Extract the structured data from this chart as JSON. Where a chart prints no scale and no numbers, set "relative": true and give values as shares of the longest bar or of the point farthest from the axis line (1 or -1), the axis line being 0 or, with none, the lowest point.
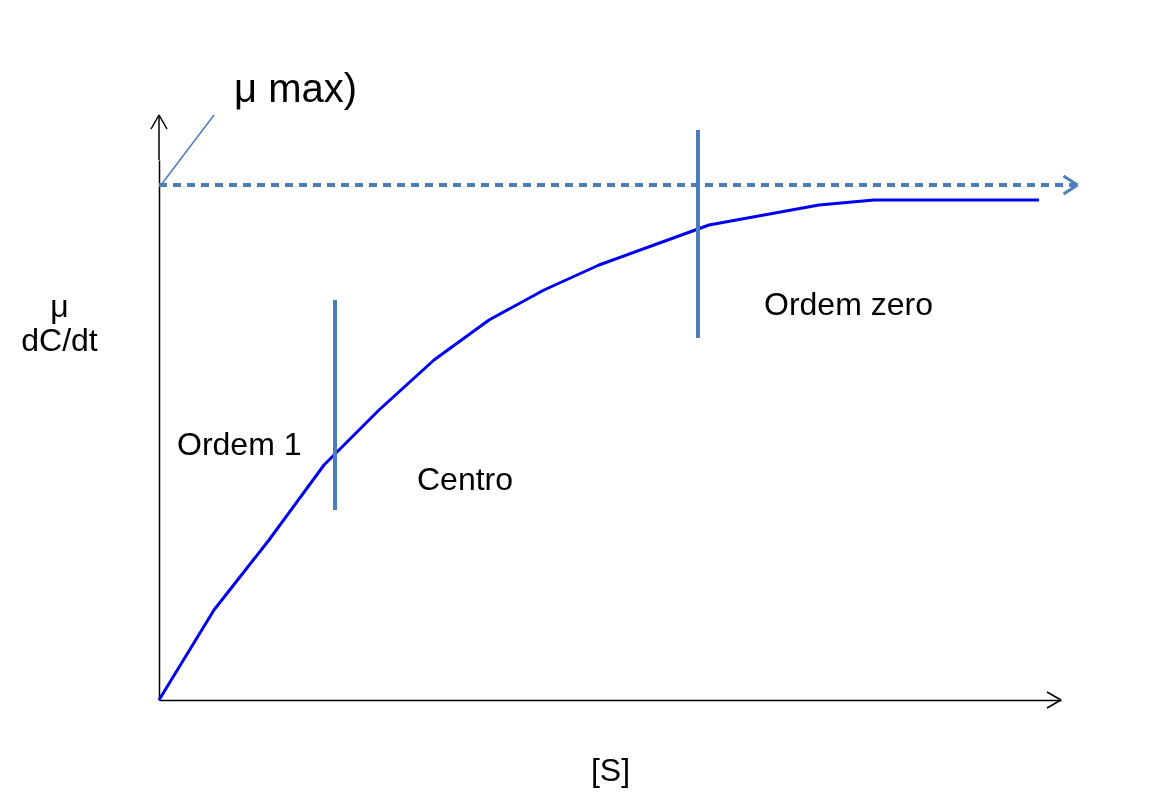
{
  "chart_data": {
    "type": "line",
    "relative": true,
    "xlabel": "[S]",
    "ylabel": "μ\ndC/dt",
    "categories": [
      null,
      null,
      null,
      null,
      null,
      null,
      null,
      null,
      null,
      null,
      null,
      null,
      null,
      null,
      null,
      null,
      null
    ],
    "series": [
      {
        "color": "#0000ee",
        "values": [
          0,
          0.18,
          0.32,
          0.47,
          0.58,
          0.68,
          0.76,
          0.82,
          0.87,
          0.91,
          0.95,
          0.97,
          0.99,
          1,
          1,
          1,
          1
        ]
      }
    ],
    "ref_lines": [
      {
        "axis": "y",
        "value": 1.03,
        "label": "μ max)",
        "color": "#4a7ebb",
        "line_style": "dashed"
      }
    ],
    "annotations": [
      "Ordem 1",
      "Centro",
      "Ordem zero"
    ],
    "marker": "none",
    "line_style": "solid",
    "grid": false,
    "tick_labels": false
  }
}
